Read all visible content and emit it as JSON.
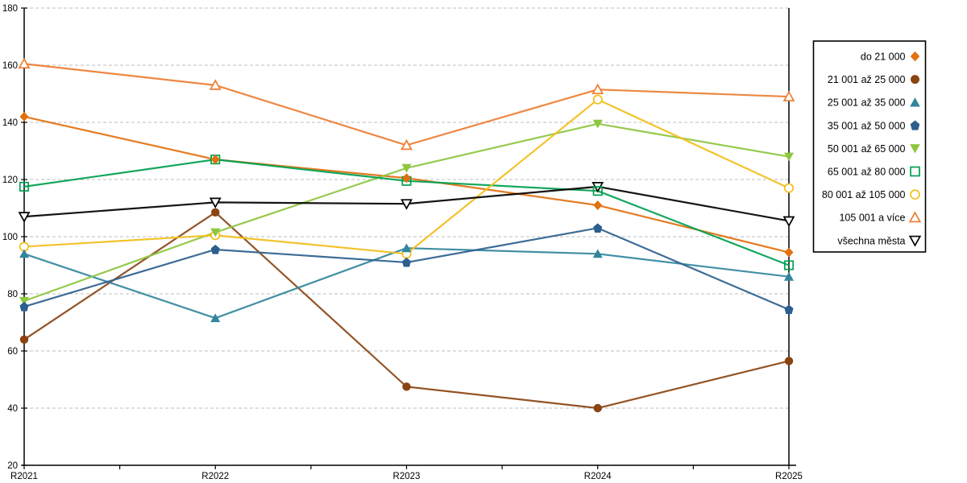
{
  "chart_data": {
    "type": "line",
    "title": "",
    "xlabel": "",
    "ylabel": "",
    "categories": [
      "R2021",
      "R2022",
      "R2023",
      "R2024",
      "R2025"
    ],
    "ylim": [
      20,
      180
    ],
    "ytick_step": 20,
    "grid": "horizontal-dashed",
    "legend_position": "right",
    "series": [
      {
        "name": "do 21 000",
        "marker": "diamond",
        "color": "#E2700F",
        "values": [
          142,
          127,
          120.5,
          111,
          94.5
        ]
      },
      {
        "name": "21 001 až 25 000",
        "marker": "circle",
        "color": "#8A4412",
        "values": [
          64,
          108.5,
          47.5,
          40,
          56.5
        ]
      },
      {
        "name": "25 001 až 35 000",
        "marker": "triangle-up",
        "color": "#31859C",
        "values": [
          94,
          71.5,
          96,
          94,
          86
        ]
      },
      {
        "name": "35 001 až 50 000",
        "marker": "pentagon",
        "color": "#2C5F8D",
        "values": [
          75.5,
          95.5,
          91,
          103,
          74.5
        ]
      },
      {
        "name": "50 001 až 65 000",
        "marker": "triangle-down",
        "color": "#8DC63F",
        "values": [
          77.5,
          101.5,
          124,
          139.5,
          128
        ]
      },
      {
        "name": "65 001 až 80 000",
        "marker": "square-open",
        "color": "#00A050",
        "values": [
          117.5,
          127,
          119.5,
          116,
          90
        ]
      },
      {
        "name": "80 001 až 105 000",
        "marker": "circle-open",
        "color": "#F2BE1A",
        "values": [
          96.5,
          100.5,
          94,
          148,
          117
        ]
      },
      {
        "name": "105 001 a více",
        "marker": "triangle-up-open",
        "color": "#ED7D31",
        "values": [
          160.5,
          153,
          132,
          151.5,
          149
        ]
      },
      {
        "name": "všechna města",
        "marker": "triangle-down-open",
        "color": "#000000",
        "values": [
          107,
          112,
          111.5,
          117.5,
          105.5
        ]
      }
    ],
    "colors": {
      "gridline": "#BDBDBD",
      "axis": "#000000",
      "legend_border": "#000000",
      "background": "#FFFFFF"
    }
  }
}
